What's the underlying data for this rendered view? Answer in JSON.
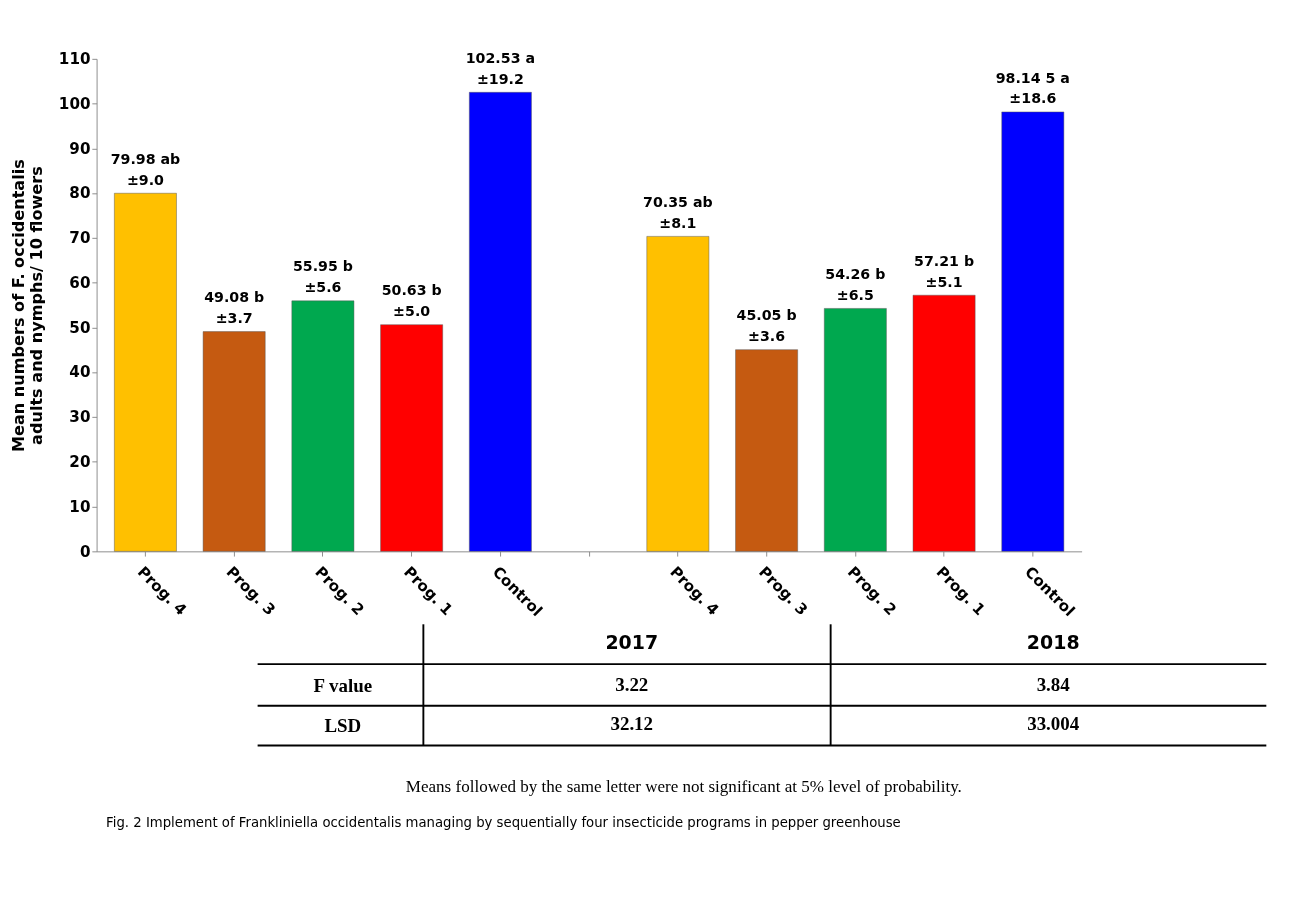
{
  "chart_data": {
    "type": "bar",
    "ylabel": "Mean numbers of F. occidentalis\nadults and nymphs/ 10 flowers",
    "categories": [
      "Prog. 4",
      "Prog. 3",
      "Prog. 2",
      "Prog. 1",
      "Control",
      null,
      "Prog. 4",
      "Prog. 3",
      "Prog. 2",
      "Prog. 1",
      "Control"
    ],
    "values": [
      79.98,
      49.08,
      55.95,
      50.63,
      102.53,
      null,
      70.35,
      45.05,
      54.26,
      57.21,
      98.145
    ],
    "colors": [
      "#ffc000",
      "#c55a11",
      "#00a84f",
      "#ff0000",
      "#0000ff",
      "#ffffff",
      "#ffc000",
      "#c55a11",
      "#00a84f",
      "#ff0000",
      "#0000ff"
    ],
    "value_labels": [
      "79.98 ab\n±9.0",
      "49.08 b\n±3.7",
      "55.95 b\n±5.6",
      "50.63 b\n±5.0",
      "102.53 a\n±19.2",
      null,
      "70.35 ab\n±8.1",
      "45.05 b\n±3.6",
      "54.26 b\n±6.5",
      "57.21 b\n±5.1",
      "98.14 5 a\n±18.6"
    ],
    "ylim": [
      0,
      110
    ],
    "yticks": [
      0,
      10,
      20,
      30,
      40,
      50,
      60,
      70,
      80,
      90,
      100,
      110
    ],
    "grid": false,
    "annotations": [
      "2017",
      "2018",
      "F value",
      "3.22",
      "3.84",
      "LSD",
      "32.12",
      "33.004",
      "Means followed by the same letter were not significant at 5% level of probability.",
      "Fig. 2 Implement of Frankliniella occidentalis managing by sequentially four insecticide programs in pepper greenhouse"
    ]
  }
}
